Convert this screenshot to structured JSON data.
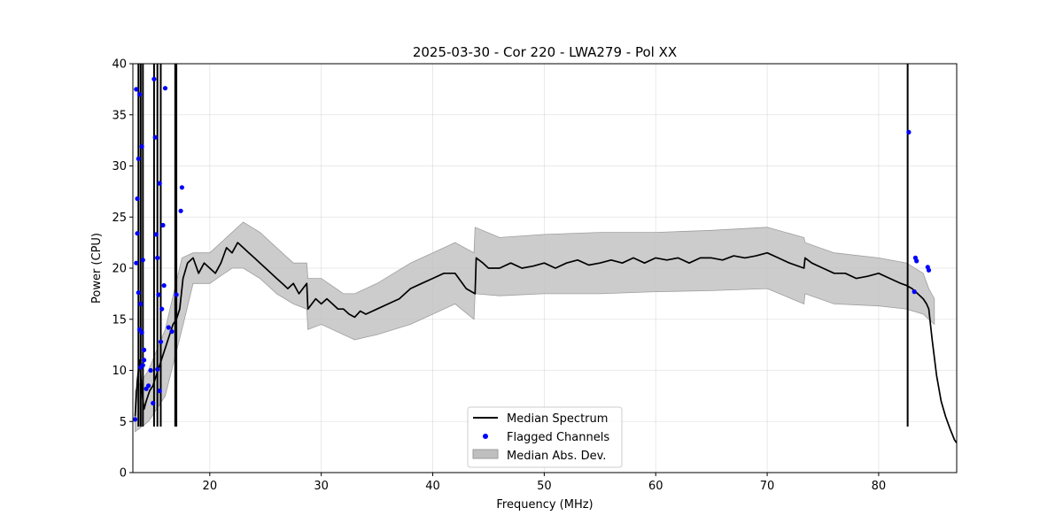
{
  "chart_data": {
    "type": "line",
    "title": "2025-03-30 - Cor 220 - LWA279 - Pol XX",
    "xlabel": "Frequency (MHz)",
    "ylabel": "Power (CPU)",
    "xlim": [
      13.1,
      87.0
    ],
    "ylim": [
      0,
      40
    ],
    "xticks": [
      20,
      30,
      40,
      50,
      60,
      70,
      80
    ],
    "yticks": [
      0,
      5,
      10,
      15,
      20,
      25,
      30,
      35,
      40
    ],
    "grid": true,
    "legend_position": "lower-center",
    "legend": [
      "Median Spectrum",
      "Flagged Channels",
      "Median Abs. Dev."
    ],
    "colors": {
      "median": "#000000",
      "flagged": "#0000ff",
      "mad_fill": "#bfbfbf",
      "mad_edge": "#9e9e9e"
    },
    "median_spectrum": {
      "x": [
        13.3,
        13.5,
        13.7,
        13.9,
        14.1,
        14.3,
        14.6,
        14.9,
        15.2,
        15.5,
        15.8,
        16.1,
        16.4,
        16.7,
        17.0,
        17.3,
        17.6,
        18.0,
        18.5,
        19.0,
        19.5,
        20.0,
        20.5,
        21.0,
        21.5,
        22.0,
        22.5,
        23.0,
        23.5,
        24.0,
        24.5,
        25.0,
        25.5,
        26.0,
        26.5,
        27.0,
        27.5,
        28.0,
        28.7,
        28.8,
        29.5,
        30.0,
        30.5,
        31.0,
        31.5,
        32.0,
        32.5,
        33.0,
        33.5,
        34.0,
        35.0,
        36.0,
        37.0,
        38.0,
        39.0,
        40.0,
        41.0,
        42.0,
        43.0,
        43.8,
        43.9,
        44.5,
        45.0,
        46.0,
        47.0,
        48.0,
        49.0,
        50.0,
        51.0,
        52.0,
        53.0,
        54.0,
        55.0,
        56.0,
        57.0,
        58.0,
        59.0,
        60.0,
        61.0,
        62.0,
        63.0,
        64.0,
        65.0,
        66.0,
        67.0,
        68.0,
        69.0,
        70.0,
        71.0,
        72.0,
        73.3,
        73.4,
        74.0,
        75.0,
        76.0,
        77.0,
        78.0,
        79.0,
        80.0,
        81.0,
        82.0,
        82.5,
        83.0,
        83.5,
        84.0,
        84.3,
        84.5,
        84.8,
        85.2,
        85.6,
        86.0,
        86.4,
        86.8,
        87.0
      ],
      "y": [
        5.5,
        9.0,
        11.0,
        8.0,
        6.2,
        7.0,
        8.0,
        8.5,
        9.5,
        10.5,
        11.5,
        12.5,
        13.5,
        14.5,
        15.0,
        16.0,
        19.0,
        20.5,
        21.0,
        19.5,
        20.5,
        20.0,
        19.5,
        20.5,
        22.0,
        21.5,
        22.5,
        22.0,
        21.5,
        21.0,
        20.5,
        20.0,
        19.5,
        19.0,
        18.5,
        18.0,
        18.5,
        17.5,
        18.5,
        16.0,
        17.0,
        16.5,
        17.0,
        16.5,
        16.0,
        16.0,
        15.5,
        15.2,
        15.8,
        15.5,
        16.0,
        16.5,
        17.0,
        18.0,
        18.5,
        19.0,
        19.5,
        19.5,
        18.0,
        17.5,
        21.0,
        20.5,
        20.0,
        20.0,
        20.5,
        20.0,
        20.2,
        20.5,
        20.0,
        20.5,
        20.8,
        20.3,
        20.5,
        20.8,
        20.5,
        21.0,
        20.5,
        21.0,
        20.8,
        21.0,
        20.5,
        21.0,
        21.0,
        20.8,
        21.2,
        21.0,
        21.2,
        21.5,
        21.0,
        20.5,
        20.0,
        21.0,
        20.5,
        20.0,
        19.5,
        19.5,
        19.0,
        19.2,
        19.5,
        19.0,
        18.5,
        18.3,
        18.0,
        17.5,
        17.0,
        16.5,
        16.0,
        13.0,
        9.5,
        7.0,
        5.5,
        4.3,
        3.2,
        2.9
      ]
    },
    "mad_band": {
      "x": [
        13.3,
        14.5,
        16.0,
        17.5,
        18.5,
        20.0,
        22.0,
        23.0,
        24.5,
        26.0,
        27.5,
        28.7,
        28.8,
        30.0,
        32.0,
        33.0,
        35.0,
        38.0,
        40.0,
        42.0,
        43.7,
        43.8,
        46.0,
        50.0,
        55.0,
        60.0,
        65.0,
        70.0,
        73.3,
        73.4,
        76.0,
        80.0,
        82.5,
        84.0,
        84.5,
        85.0
      ],
      "upper": [
        8.0,
        10.0,
        14.0,
        21.0,
        21.5,
        21.5,
        23.5,
        24.5,
        23.5,
        22.0,
        20.5,
        20.5,
        19.0,
        19.0,
        17.5,
        17.5,
        18.5,
        20.5,
        21.5,
        22.5,
        21.5,
        24.0,
        23.0,
        23.3,
        23.5,
        23.5,
        23.7,
        24.0,
        23.0,
        22.5,
        21.5,
        21.0,
        20.5,
        19.5,
        18.0,
        17.0
      ],
      "lower": [
        4.0,
        5.0,
        7.5,
        14.0,
        18.5,
        18.5,
        20.0,
        20.0,
        19.0,
        17.5,
        16.5,
        16.0,
        14.0,
        14.5,
        13.5,
        13.0,
        13.5,
        14.5,
        15.5,
        16.5,
        15.0,
        17.5,
        17.3,
        17.5,
        17.5,
        17.7,
        17.8,
        18.0,
        16.5,
        17.5,
        16.5,
        16.3,
        16.0,
        15.5,
        15.0,
        14.5
      ]
    },
    "spikes_x": [
      13.6,
      13.8,
      14.0,
      15.0,
      15.3,
      15.6,
      16.9,
      17.0,
      82.6
    ],
    "flagged_channels": {
      "x": [
        13.3,
        13.4,
        13.4,
        13.5,
        13.5,
        13.6,
        13.6,
        13.7,
        13.7,
        13.8,
        13.8,
        13.9,
        13.9,
        14.0,
        14.0,
        14.1,
        14.1,
        14.3,
        14.5,
        14.7,
        14.9,
        15.0,
        15.1,
        15.2,
        15.3,
        15.3,
        15.4,
        15.5,
        15.5,
        15.6,
        15.7,
        15.8,
        15.9,
        16.0,
        16.3,
        16.6,
        17.0,
        17.4,
        17.5,
        82.7,
        83.2,
        83.3,
        83.4,
        84.4,
        84.5
      ],
      "y": [
        5.2,
        20.5,
        37.5,
        26.8,
        23.4,
        30.7,
        17.6,
        14.0,
        37.0,
        10.3,
        16.5,
        31.9,
        13.7,
        10.5,
        20.8,
        12.0,
        11.0,
        8.2,
        8.5,
        10.0,
        6.8,
        38.5,
        32.8,
        23.3,
        21.0,
        10.1,
        17.4,
        28.3,
        8.0,
        12.8,
        16.0,
        24.2,
        18.3,
        37.6,
        14.2,
        13.8,
        17.4,
        25.6,
        27.9,
        33.3,
        17.7,
        21.0,
        20.7,
        20.1,
        19.8
      ]
    }
  }
}
